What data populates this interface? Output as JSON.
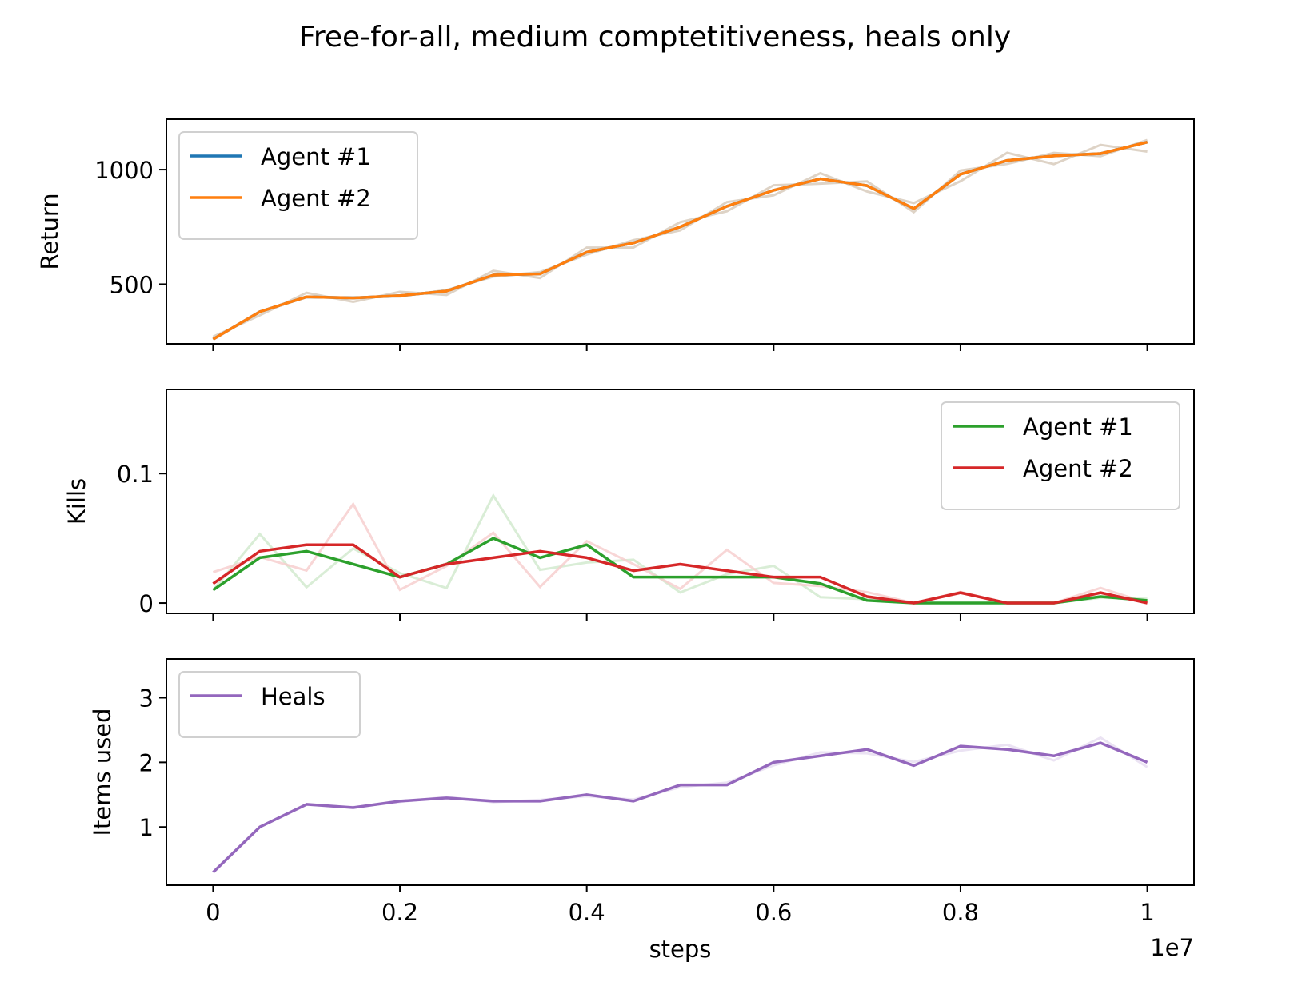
{
  "title": "Free-for-all, medium comptetitiveness, heals only",
  "colors": {
    "agent1_return": "#1f77b4",
    "agent2_return": "#ff7f0e",
    "agent1_kills": "#2ca02c",
    "agent2_kills": "#d62728",
    "heals": "#9467bd",
    "raw_return": "#d6c8b8",
    "raw_agent1_kills": "#cfe8cc",
    "raw_agent2_kills": "#f6cccc",
    "raw_heals": "#e6dcf0"
  },
  "chart_data": [
    {
      "type": "line",
      "panel": "top",
      "ylabel": "Return",
      "xlim": [
        -0.05,
        1.05
      ],
      "ylim": [
        240,
        1220
      ],
      "yticks": [
        500,
        1000
      ],
      "xticks": [
        0.0,
        0.2,
        0.4,
        0.6,
        0.8,
        1.0
      ],
      "grid": false,
      "legend": "top-left",
      "x": [
        0.0,
        0.05,
        0.1,
        0.15,
        0.2,
        0.25,
        0.3,
        0.35,
        0.4,
        0.45,
        0.5,
        0.55,
        0.6,
        0.65,
        0.7,
        0.75,
        0.8,
        0.85,
        0.9,
        0.95,
        1.0
      ],
      "series": [
        {
          "name": "Agent #1",
          "values": [
            260,
            380,
            445,
            440,
            450,
            470,
            540,
            545,
            640,
            680,
            750,
            840,
            910,
            960,
            930,
            830,
            980,
            1040,
            1060,
            1070,
            1120
          ]
        },
        {
          "name": "Agent #2",
          "values": [
            260,
            380,
            445,
            440,
            450,
            470,
            540,
            545,
            640,
            680,
            750,
            840,
            910,
            960,
            930,
            830,
            980,
            1040,
            1060,
            1070,
            1120
          ]
        }
      ]
    },
    {
      "type": "line",
      "panel": "middle",
      "ylabel": "Kills",
      "xlim": [
        -0.05,
        1.05
      ],
      "ylim": [
        -0.008,
        0.165
      ],
      "yticks": [
        0.0,
        0.1
      ],
      "grid": false,
      "legend": "top-right",
      "x": [
        0.0,
        0.05,
        0.1,
        0.15,
        0.2,
        0.25,
        0.3,
        0.35,
        0.4,
        0.45,
        0.5,
        0.55,
        0.6,
        0.65,
        0.7,
        0.75,
        0.8,
        0.85,
        0.9,
        0.95,
        1.0
      ],
      "series": [
        {
          "name": "Agent #1",
          "values": [
            0.01,
            0.035,
            0.04,
            0.03,
            0.02,
            0.03,
            0.05,
            0.035,
            0.045,
            0.02,
            0.02,
            0.02,
            0.02,
            0.015,
            0.002,
            0.0,
            0.0,
            0.0,
            0.0,
            0.005,
            0.002
          ]
        },
        {
          "name": "Agent #2",
          "values": [
            0.015,
            0.04,
            0.045,
            0.045,
            0.02,
            0.03,
            0.035,
            0.04,
            0.035,
            0.025,
            0.03,
            0.025,
            0.02,
            0.02,
            0.005,
            0.0,
            0.008,
            0.0,
            0.0,
            0.008,
            0.0
          ]
        }
      ]
    },
    {
      "type": "line",
      "panel": "bottom",
      "ylabel": "Items used",
      "xlabel": "steps",
      "xscale_label": "1e7",
      "xlim": [
        -0.05,
        1.05
      ],
      "ylim": [
        0.1,
        3.6
      ],
      "yticks": [
        1,
        2,
        3
      ],
      "xticks": [
        0.0,
        0.2,
        0.4,
        0.6,
        0.8,
        1.0
      ],
      "grid": false,
      "legend": "top-left",
      "x": [
        0.0,
        0.05,
        0.1,
        0.15,
        0.2,
        0.25,
        0.3,
        0.35,
        0.4,
        0.45,
        0.5,
        0.55,
        0.6,
        0.65,
        0.7,
        0.75,
        0.8,
        0.85,
        0.9,
        0.95,
        1.0
      ],
      "series": [
        {
          "name": "Heals",
          "values": [
            0.3,
            1.0,
            1.35,
            1.3,
            1.4,
            1.45,
            1.4,
            1.4,
            1.5,
            1.4,
            1.65,
            1.65,
            2.0,
            2.1,
            2.2,
            1.95,
            2.25,
            2.2,
            2.1,
            2.3,
            2.0
          ]
        }
      ]
    }
  ]
}
